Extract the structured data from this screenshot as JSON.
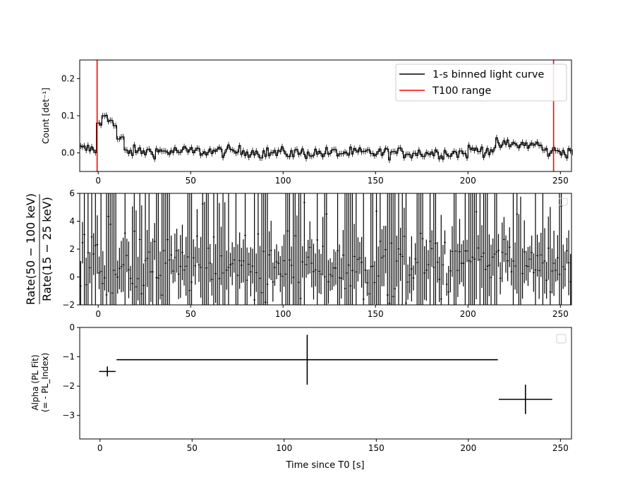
{
  "chart_data": [
    {
      "type": "line",
      "panel": "light-curve",
      "ylabel": "Count [det⁻¹]",
      "xlim": [
        -10,
        256
      ],
      "ylim": [
        -0.05,
        0.25
      ],
      "xticks": [
        "0",
        "50",
        "100",
        "150",
        "200",
        "250"
      ],
      "yticks": [
        "0.0",
        "0.1",
        "0.2"
      ],
      "ytick_values": [
        0.0,
        0.1,
        0.2
      ],
      "legend_position": "top-right",
      "legend": [
        "1-s binned light curve",
        "T100 range"
      ],
      "t100_range": [
        -0.6,
        246.3
      ],
      "series": [
        {
          "name": "1-s binned light curve",
          "color": "#000000",
          "segments": [
            {
              "from": -10,
              "to": -1,
              "level": 0.01,
              "noise": 0.012
            },
            {
              "from": -1,
              "to": 2,
              "level": 0.07,
              "noise": 0.02
            },
            {
              "from": 2,
              "to": 7,
              "level": 0.105,
              "noise": 0.018
            },
            {
              "from": 7,
              "to": 10,
              "level": 0.075,
              "noise": 0.015
            },
            {
              "from": 10,
              "to": 14,
              "level": 0.035,
              "noise": 0.012
            },
            {
              "from": 14,
              "to": 85,
              "level": 0.004,
              "noise": 0.011
            },
            {
              "from": 85,
              "to": 200,
              "level": 0.0,
              "noise": 0.011
            },
            {
              "from": 200,
              "to": 215,
              "level": 0.008,
              "noise": 0.011
            },
            {
              "from": 215,
              "to": 240,
              "level": 0.022,
              "noise": 0.011
            },
            {
              "from": 240,
              "to": 256,
              "level": 0.004,
              "noise": 0.011
            }
          ]
        }
      ]
    },
    {
      "type": "scatter",
      "panel": "hardness-ratio",
      "ylabel_numerator": "Rate(50 − 100 keV)",
      "ylabel_denominator": "Rate(15 − 25 keV)",
      "xlim": [
        -10,
        256
      ],
      "ylim": [
        -2,
        6
      ],
      "xticks": [
        "0",
        "50",
        "100",
        "150",
        "200",
        "250"
      ],
      "yticks": [
        "−2",
        "0",
        "2",
        "4",
        "6"
      ],
      "ytick_values": [
        -2,
        0,
        2,
        4,
        6
      ],
      "legend_position": "top-right",
      "points": {
        "from": -10,
        "to": 256,
        "step": 1,
        "center": 0.8,
        "spread": 1.4,
        "error_min": 0.8,
        "error_max": 9.0
      }
    },
    {
      "type": "scatter",
      "panel": "alpha",
      "ylabel_line1": "Alpha (PL Fit)",
      "ylabel_line2": "(= - PL_Index)",
      "xlabel": "Time since T0 [s]",
      "xlim": [
        -11,
        256
      ],
      "ylim": [
        -3.8,
        0
      ],
      "xticks": [
        "0",
        "50",
        "100",
        "150",
        "200",
        "250"
      ],
      "yticks": [
        "0",
        "−1",
        "−2",
        "−3"
      ],
      "ytick_values": [
        0,
        -1,
        -2,
        -3
      ],
      "legend_position": "top-right",
      "points": [
        {
          "x": 4.0,
          "xerr": 4.5,
          "y": -1.5,
          "yerr": 0.17
        },
        {
          "x": 112.5,
          "xerr": 103.5,
          "y": -1.1,
          "yerr": 0.85
        },
        {
          "x": 231.0,
          "xerr": 14.5,
          "y": -2.45,
          "yerr": 0.5
        }
      ]
    }
  ]
}
